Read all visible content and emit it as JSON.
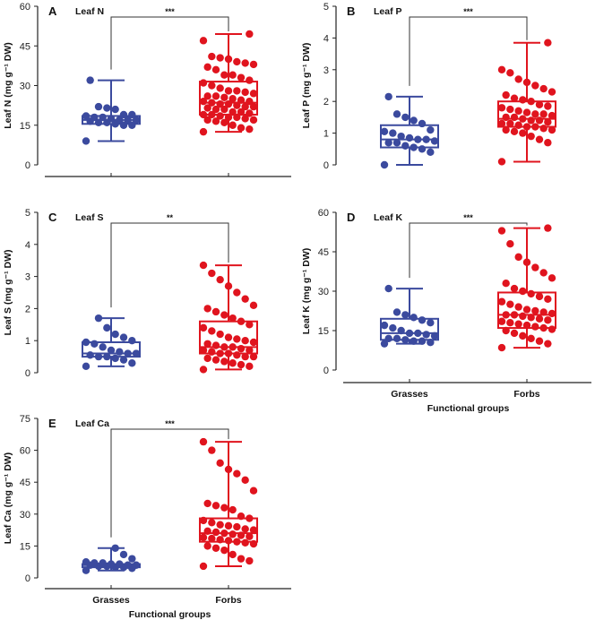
{
  "colors": {
    "grasses": "#3b4a9e",
    "forbs": "#e0141e"
  },
  "chart_data": [
    {
      "type": "box",
      "letter": "A",
      "title": "Leaf N",
      "ylabel": "Leaf N (mg g⁻¹ DW)",
      "ylim": [
        0,
        60
      ],
      "yticks": [
        0,
        15,
        30,
        45,
        60
      ],
      "significance": "***",
      "categories": [
        "Grasses",
        "Forbs"
      ],
      "show_xlabels": false,
      "series": [
        {
          "name": "Grasses",
          "min": 9,
          "q1": 15.5,
          "median": 17,
          "q3": 18.5,
          "max": 32,
          "points": [
            9,
            15,
            15,
            15.5,
            16,
            16,
            16.5,
            17,
            17,
            17,
            17.5,
            18,
            18,
            18.5,
            19,
            19,
            21,
            21.5,
            22,
            32
          ]
        },
        {
          "name": "Forbs",
          "min": 12.5,
          "q1": 19,
          "median": 23.5,
          "q3": 31.5,
          "max": 49.5,
          "points": [
            12.5,
            13.5,
            14,
            15,
            16,
            16.5,
            17,
            17,
            17.5,
            18,
            18,
            18.5,
            19,
            19,
            19.5,
            20,
            20,
            21,
            21,
            21.5,
            22,
            22,
            22.5,
            23,
            23,
            23.5,
            24,
            24,
            24.5,
            25,
            25.5,
            26,
            26,
            27,
            27.5,
            28,
            28,
            29,
            30,
            31,
            32,
            33,
            34,
            34,
            36,
            37,
            38,
            38.5,
            39,
            40,
            40.5,
            41,
            47,
            49.5
          ]
        }
      ]
    },
    {
      "type": "box",
      "letter": "B",
      "title": "Leaf P",
      "ylabel": "Leaf P (mg g⁻¹ DW)",
      "ylim": [
        0,
        5
      ],
      "yticks": [
        0,
        1,
        2,
        3,
        4,
        5
      ],
      "significance": "***",
      "categories": [
        "Grasses",
        "Forbs"
      ],
      "show_xlabels": false,
      "series": [
        {
          "name": "Grasses",
          "min": 0,
          "q1": 0.55,
          "median": 0.8,
          "q3": 1.25,
          "max": 2.15,
          "points": [
            0,
            0.4,
            0.5,
            0.55,
            0.6,
            0.7,
            0.7,
            0.75,
            0.8,
            0.8,
            0.85,
            0.9,
            1.0,
            1.05,
            1.1,
            1.3,
            1.4,
            1.5,
            1.6,
            2.15
          ]
        },
        {
          "name": "Forbs",
          "min": 0.1,
          "q1": 1.2,
          "median": 1.45,
          "q3": 2.0,
          "max": 3.85,
          "points": [
            0.1,
            0.7,
            0.8,
            0.9,
            1.0,
            1.05,
            1.1,
            1.1,
            1.15,
            1.2,
            1.2,
            1.25,
            1.3,
            1.3,
            1.35,
            1.4,
            1.4,
            1.45,
            1.5,
            1.5,
            1.55,
            1.6,
            1.6,
            1.65,
            1.7,
            1.75,
            1.8,
            1.85,
            1.9,
            2.0,
            2.05,
            2.1,
            2.2,
            2.3,
            2.4,
            2.5,
            2.6,
            2.7,
            2.9,
            3.0,
            3.85
          ]
        }
      ]
    },
    {
      "type": "box",
      "letter": "C",
      "title": "Leaf S",
      "ylabel": "Leaf S (mg g⁻¹ DW)",
      "ylim": [
        0,
        5
      ],
      "yticks": [
        0,
        1,
        2,
        3,
        4,
        5
      ],
      "significance": "**",
      "categories": [
        "Grasses",
        "Forbs"
      ],
      "show_xlabels": false,
      "series": [
        {
          "name": "Grasses",
          "min": 0.2,
          "q1": 0.5,
          "median": 0.6,
          "q3": 0.95,
          "max": 1.7,
          "points": [
            0.2,
            0.3,
            0.4,
            0.45,
            0.5,
            0.5,
            0.55,
            0.6,
            0.6,
            0.65,
            0.7,
            0.8,
            0.9,
            0.95,
            1.0,
            1.1,
            1.2,
            1.4,
            1.7
          ]
        },
        {
          "name": "Forbs",
          "min": 0.1,
          "q1": 0.6,
          "median": 0.8,
          "q3": 1.6,
          "max": 3.35,
          "points": [
            0.1,
            0.2,
            0.25,
            0.3,
            0.35,
            0.4,
            0.45,
            0.5,
            0.5,
            0.55,
            0.6,
            0.6,
            0.65,
            0.7,
            0.7,
            0.75,
            0.8,
            0.8,
            0.85,
            0.9,
            0.95,
            1.0,
            1.05,
            1.1,
            1.2,
            1.3,
            1.4,
            1.5,
            1.6,
            1.7,
            1.8,
            1.9,
            2.0,
            2.1,
            2.3,
            2.5,
            2.7,
            2.9,
            3.1,
            3.35
          ]
        }
      ]
    },
    {
      "type": "box",
      "letter": "D",
      "title": "Leaf K",
      "ylabel": "Leaf K (mg g⁻¹ DW)",
      "ylim": [
        0,
        60
      ],
      "yticks": [
        0,
        15,
        30,
        45,
        60
      ],
      "significance": "***",
      "categories": [
        "Grasses",
        "Forbs"
      ],
      "show_xlabels": true,
      "xlabel": "Functional groups",
      "series": [
        {
          "name": "Grasses",
          "min": 10,
          "q1": 11.5,
          "median": 14,
          "q3": 19.5,
          "max": 31,
          "points": [
            10,
            10.5,
            11,
            11,
            11.5,
            12,
            12,
            13,
            13.5,
            14,
            14,
            15,
            16,
            17,
            18,
            19,
            20,
            21,
            22,
            31
          ]
        },
        {
          "name": "Forbs",
          "min": 8.5,
          "q1": 16,
          "median": 21,
          "q3": 29.5,
          "max": 54,
          "points": [
            8.5,
            10,
            11,
            12,
            13,
            14,
            15,
            15.5,
            16,
            16.5,
            17,
            17.5,
            18,
            18.5,
            19,
            19.5,
            20,
            20.5,
            21,
            21,
            21.5,
            22,
            22.5,
            23,
            24,
            25,
            26,
            27,
            28,
            29,
            30,
            31,
            33,
            35,
            37,
            39,
            41,
            43,
            48,
            53,
            54
          ]
        }
      ]
    },
    {
      "type": "box",
      "letter": "E",
      "title": "Leaf Ca",
      "ylabel": "Leaf Ca (mg g⁻¹ DW)",
      "ylim": [
        0,
        75
      ],
      "yticks": [
        0,
        15,
        30,
        45,
        60,
        75
      ],
      "significance": "***",
      "categories": [
        "Grasses",
        "Forbs"
      ],
      "show_xlabels": true,
      "xlabel": "Functional groups",
      "series": [
        {
          "name": "Grasses",
          "min": 3.5,
          "q1": 5,
          "median": 6,
          "q3": 6.5,
          "max": 14,
          "points": [
            3.5,
            4.5,
            5,
            5,
            5.5,
            5.5,
            6,
            6,
            6,
            6.5,
            6.5,
            7,
            7,
            7.5,
            9,
            11,
            14
          ]
        },
        {
          "name": "Forbs",
          "min": 5.5,
          "q1": 17,
          "median": 21,
          "q3": 28,
          "max": 64,
          "points": [
            5.5,
            8,
            9,
            11,
            13,
            14,
            15,
            16,
            16.5,
            17,
            17.5,
            18,
            18.5,
            19,
            19.5,
            20,
            20.5,
            21,
            21.5,
            22,
            22.5,
            23,
            24,
            24.5,
            25,
            26,
            27,
            28,
            29,
            32,
            33,
            34,
            35,
            41,
            46,
            49,
            51,
            54,
            60,
            64
          ]
        }
      ]
    }
  ]
}
